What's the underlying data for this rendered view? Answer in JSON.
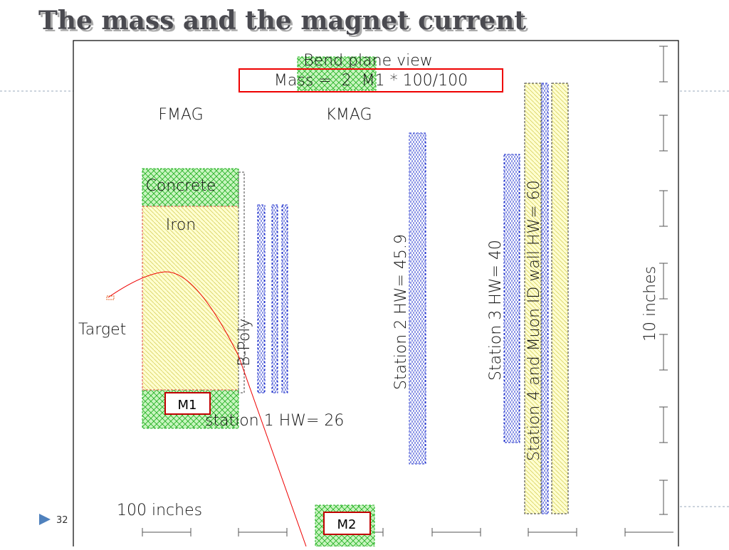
{
  "title": "The mass and the magnet current",
  "diagram": {
    "view_title": "Bend plane view",
    "mass_formula": "Mass =  2  M1 * 100/100",
    "labels": {
      "fmag": "FMAG",
      "kmag": "KMAG",
      "concrete": "Concrete",
      "iron": "Iron",
      "target": "Target",
      "b_poly": "B-Poly",
      "station1": "station 1 HW= 26",
      "station2": "Station 2 HW= 45.9",
      "station3": "Station 3 HW= 40",
      "station4": "Station 4 and Muon ID wall HW= 60",
      "vertical_scale": "10 inches",
      "horizontal_scale": "100 inches"
    },
    "callouts": {
      "m1": "M1",
      "m2": "M2"
    }
  },
  "slide_number": "32"
}
